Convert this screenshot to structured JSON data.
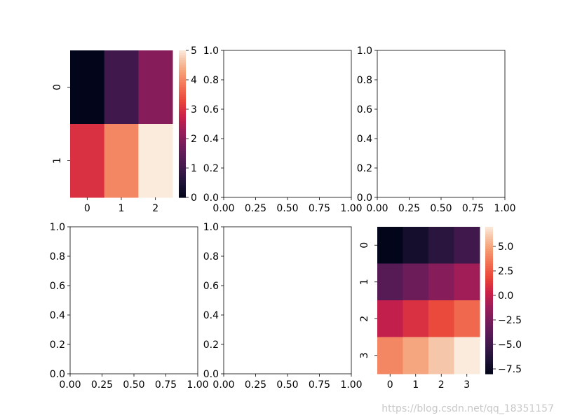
{
  "figure": {
    "watermark": "https://blog.csdn.net/qq_18351157"
  },
  "chart_data": [
    {
      "id": "heatmap-1",
      "type": "heatmap",
      "rows": [
        "0",
        "1"
      ],
      "cols": [
        "0",
        "1",
        "2"
      ],
      "values": [
        [
          0,
          1,
          2
        ],
        [
          3,
          4,
          5
        ]
      ],
      "colorbar": {
        "min": 0,
        "max": 5,
        "ticks": [
          "0",
          "1",
          "2",
          "3",
          "4",
          "5"
        ]
      },
      "colormap": "rocket"
    },
    {
      "id": "empty-1",
      "type": "empty",
      "xlim": [
        0,
        1
      ],
      "ylim": [
        0,
        1
      ],
      "xticks": [
        "0.00",
        "0.25",
        "0.50",
        "0.75",
        "1.00"
      ],
      "yticks": [
        "0.0",
        "0.2",
        "0.4",
        "0.6",
        "0.8",
        "1.0"
      ]
    },
    {
      "id": "empty-2",
      "type": "empty",
      "xlim": [
        0,
        1
      ],
      "ylim": [
        0,
        1
      ],
      "xticks": [
        "0.00",
        "0.25",
        "0.50",
        "0.75",
        "1.00"
      ],
      "yticks": [
        "0.0",
        "0.2",
        "0.4",
        "0.6",
        "0.8",
        "1.0"
      ]
    },
    {
      "id": "empty-3",
      "type": "empty",
      "xlim": [
        0,
        1
      ],
      "ylim": [
        0,
        1
      ],
      "xticks": [
        "0.00",
        "0.25",
        "0.50",
        "0.75",
        "1.00"
      ],
      "yticks": [
        "0.0",
        "0.2",
        "0.4",
        "0.6",
        "0.8",
        "1.0"
      ]
    },
    {
      "id": "empty-4",
      "type": "empty",
      "xlim": [
        0,
        1
      ],
      "ylim": [
        0,
        1
      ],
      "xticks": [
        "0.00",
        "0.25",
        "0.50",
        "0.75",
        "1.00"
      ],
      "yticks": [
        "0.0",
        "0.2",
        "0.4",
        "0.6",
        "0.8",
        "1.0"
      ]
    },
    {
      "id": "heatmap-2",
      "type": "heatmap",
      "rows": [
        "0",
        "1",
        "2",
        "3"
      ],
      "cols": [
        "0",
        "1",
        "2",
        "3"
      ],
      "values": [
        [
          -8,
          -7,
          -6,
          -5
        ],
        [
          -4,
          -3,
          -2,
          -1
        ],
        [
          0,
          1,
          2,
          3
        ],
        [
          4,
          5,
          6,
          7
        ]
      ],
      "colorbar": {
        "min": -8,
        "max": 7,
        "ticks": [
          "5.0",
          "2.5",
          "0.0",
          "−2.5",
          "−5.0",
          "−7.5"
        ],
        "tick_values": [
          5.0,
          2.5,
          0.0,
          -2.5,
          -5.0,
          -7.5
        ]
      },
      "colormap": "rocket"
    }
  ]
}
